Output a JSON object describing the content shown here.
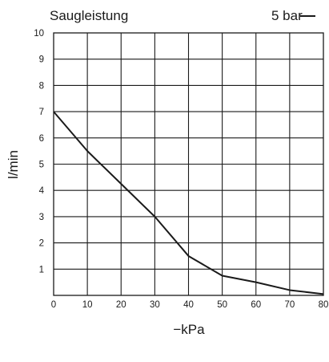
{
  "chart_data": {
    "type": "line",
    "title": "Saugleistung",
    "legend_label": "5 bar",
    "xlabel": "−kPa",
    "ylabel": "l/min",
    "xlim": [
      0,
      80
    ],
    "ylim": [
      0,
      10
    ],
    "x_ticks": [
      0,
      10,
      20,
      30,
      40,
      50,
      60,
      70,
      80
    ],
    "y_ticks": [
      1,
      2,
      3,
      4,
      5,
      6,
      7,
      8,
      9,
      10
    ],
    "grid": true,
    "legend_position": "top-right",
    "series": [
      {
        "name": "5 bar",
        "x": [
          0,
          10,
          20,
          30,
          40,
          50,
          60,
          70,
          80
        ],
        "y": [
          7.0,
          5.5,
          4.25,
          3.0,
          1.5,
          0.75,
          0.5,
          0.2,
          0.05
        ]
      }
    ]
  }
}
